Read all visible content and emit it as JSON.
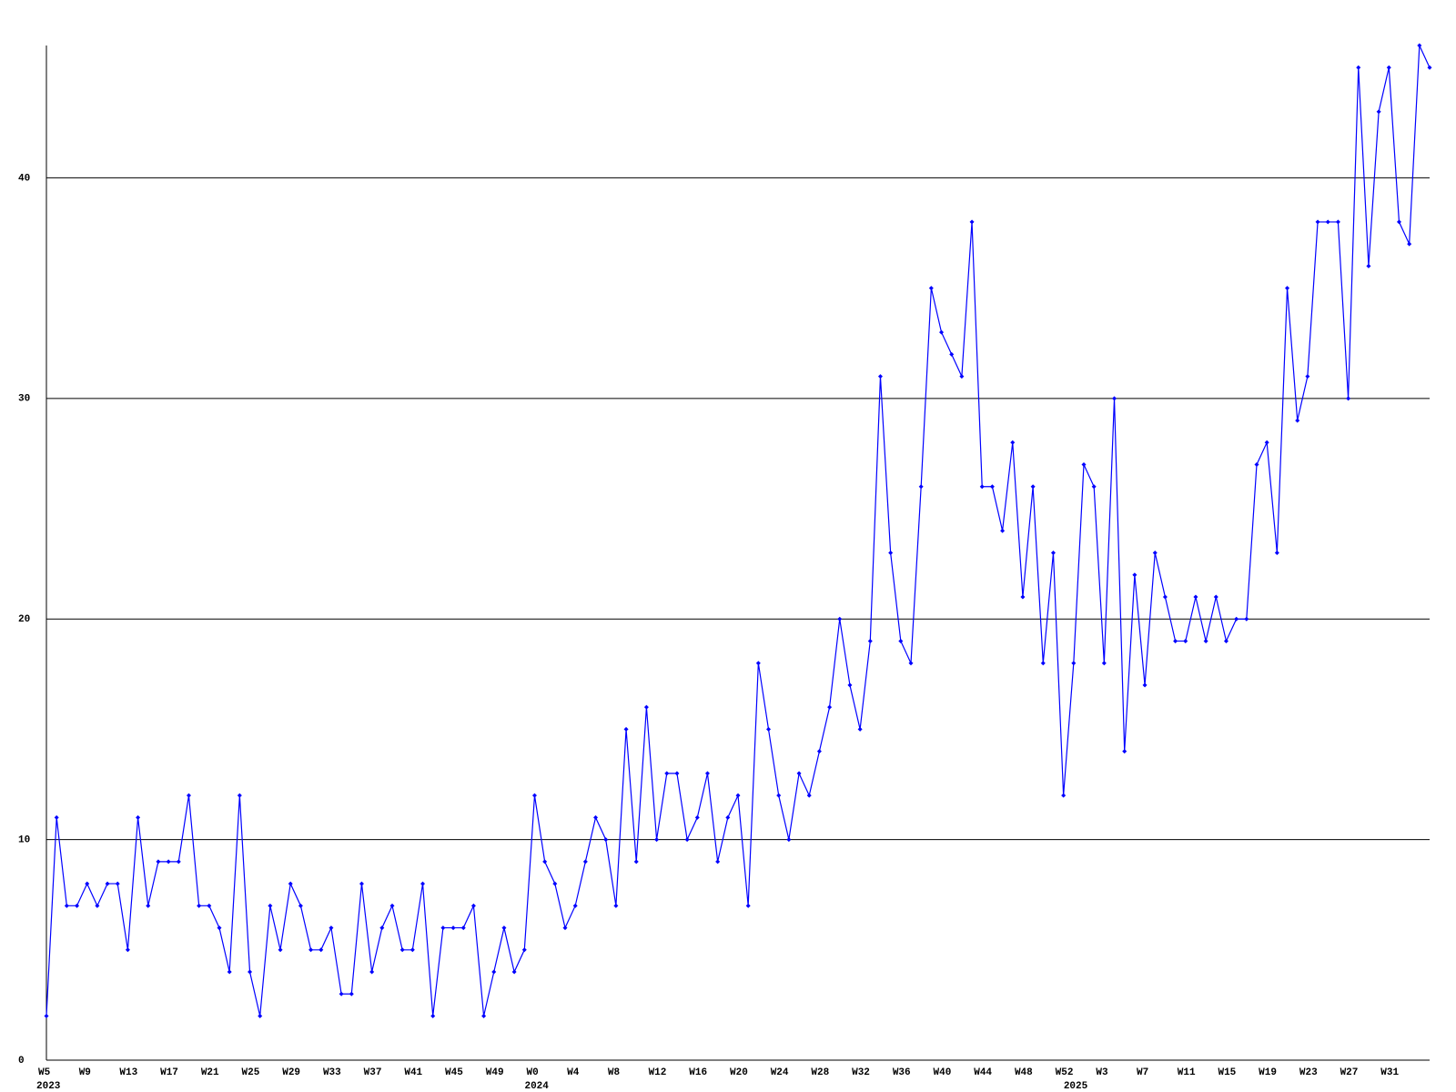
{
  "chart_data": {
    "type": "line",
    "categories": [
      "W5",
      null,
      null,
      null,
      "W9",
      null,
      null,
      null,
      "W13",
      null,
      null,
      null,
      "W17",
      null,
      null,
      null,
      "W21",
      null,
      null,
      null,
      "W25",
      null,
      null,
      null,
      "W29",
      null,
      null,
      null,
      "W33",
      null,
      null,
      null,
      "W37",
      null,
      null,
      null,
      "W41",
      null,
      null,
      null,
      "W45",
      null,
      null,
      null,
      "W49",
      null,
      null,
      null,
      "W0",
      null,
      null,
      null,
      "W4",
      null,
      null,
      null,
      "W8",
      null,
      null,
      null,
      "W12",
      null,
      null,
      null,
      "W16",
      null,
      null,
      null,
      "W20",
      null,
      null,
      null,
      "W24",
      null,
      null,
      null,
      "W28",
      null,
      null,
      null,
      "W32",
      null,
      null,
      null,
      "W36",
      null,
      null,
      null,
      "W40",
      null,
      null,
      null,
      "W44",
      null,
      null,
      null,
      "W48",
      null,
      null,
      null,
      "W52",
      null,
      null,
      null,
      "W3",
      null,
      null,
      null,
      "W7",
      null,
      null,
      null,
      "W11",
      null,
      null,
      null,
      "W15",
      null,
      null,
      null,
      "W19",
      null,
      null,
      null,
      "W23",
      null,
      null,
      null,
      "W27",
      null,
      null,
      null,
      "W31",
      null,
      null,
      null,
      null
    ],
    "year_labels": [
      "2023",
      null,
      null,
      null,
      null,
      null,
      null,
      null,
      null,
      null,
      null,
      null,
      null,
      null,
      null,
      null,
      null,
      null,
      null,
      null,
      null,
      null,
      null,
      null,
      null,
      null,
      null,
      null,
      null,
      null,
      null,
      null,
      null,
      null,
      null,
      null,
      null,
      null,
      null,
      null,
      null,
      null,
      null,
      null,
      null,
      null,
      null,
      null,
      "2024",
      null,
      null,
      null,
      null,
      null,
      null,
      null,
      null,
      null,
      null,
      null,
      null,
      null,
      null,
      null,
      null,
      null,
      null,
      null,
      null,
      null,
      null,
      null,
      null,
      null,
      null,
      null,
      null,
      null,
      null,
      null,
      null,
      null,
      null,
      null,
      null,
      null,
      null,
      null,
      null,
      null,
      null,
      null,
      null,
      null,
      null,
      null,
      null,
      null,
      null,
      null,
      null,
      "2025",
      null,
      null,
      null,
      null,
      null,
      null,
      null,
      null,
      null,
      null,
      null,
      null,
      null,
      null,
      null,
      null,
      null,
      null,
      null,
      null,
      null,
      null,
      null,
      null,
      null,
      null,
      null,
      null,
      null,
      null,
      null,
      null,
      null,
      null,
      null
    ],
    "series": [
      {
        "color": "#0000ff",
        "values": [
          2,
          11,
          7,
          7,
          8,
          7,
          8,
          8,
          5,
          11,
          7,
          9,
          9,
          9,
          12,
          7,
          7,
          6,
          4,
          12,
          4,
          2,
          7,
          5,
          8,
          7,
          5,
          5,
          6,
          3,
          3,
          8,
          4,
          6,
          7,
          5,
          5,
          8,
          2,
          6,
          6,
          6,
          7,
          2,
          4,
          6,
          4,
          5,
          12,
          9,
          8,
          6,
          7,
          9,
          11,
          10,
          7,
          15,
          9,
          16,
          10,
          13,
          13,
          10,
          11,
          13,
          9,
          11,
          12,
          7,
          18,
          15,
          12,
          10,
          13,
          12,
          14,
          16,
          20,
          17,
          15,
          19,
          31,
          23,
          19,
          18,
          26,
          35,
          33,
          32,
          31,
          38,
          26,
          26,
          24,
          28,
          21,
          26,
          18,
          23,
          12,
          18,
          27,
          26,
          18,
          30,
          14,
          22,
          17,
          23,
          21,
          19,
          19,
          21,
          19,
          21,
          19,
          20,
          20,
          27,
          28,
          23,
          35,
          29,
          31,
          38,
          38,
          38,
          30,
          45,
          36,
          43,
          45,
          38,
          37,
          46,
          45
        ]
      }
    ],
    "ylim": [
      0,
      46
    ],
    "yticks": [
      0,
      10,
      20,
      30,
      40
    ],
    "grid": true
  }
}
